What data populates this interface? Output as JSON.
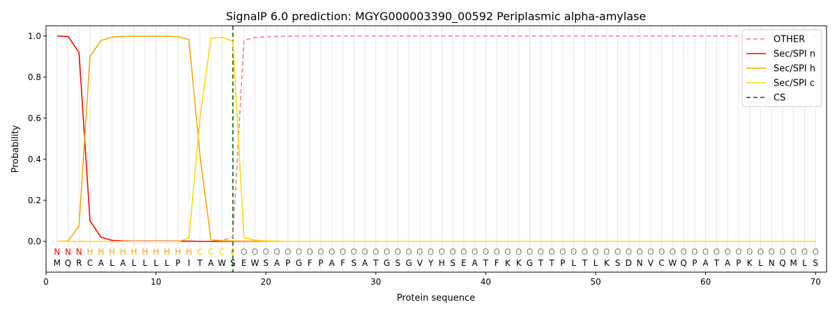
{
  "chart_data": {
    "type": "line",
    "title": "SignalP 6.0 prediction: MGYG000003390_00592 Periplasmic alpha-amylase",
    "xlabel": "Protein sequence",
    "ylabel": "Probability",
    "xlim": [
      0,
      71
    ],
    "ylim": [
      -0.15,
      1.05
    ],
    "xticks": [
      0,
      10,
      20,
      30,
      40,
      50,
      60,
      70
    ],
    "yticks": [
      0.0,
      0.2,
      0.4,
      0.6,
      0.8,
      1.0
    ],
    "xtick_labels": [
      "0",
      "10",
      "20",
      "30",
      "40",
      "50",
      "60",
      "70"
    ],
    "ytick_labels": [
      "0.0",
      "0.2",
      "0.4",
      "0.6",
      "0.8",
      "1.0"
    ],
    "grid": "vertical lines at each residue position",
    "legend_position": "top-right",
    "sequence": [
      "M",
      "Q",
      "R",
      "C",
      "A",
      "L",
      "A",
      "L",
      "L",
      "L",
      "L",
      "P",
      "I",
      "T",
      "A",
      "W",
      "S",
      "E",
      "W",
      "S",
      "A",
      "P",
      "G",
      "F",
      "P",
      "A",
      "F",
      "S",
      "A",
      "T",
      "G",
      "S",
      "G",
      "V",
      "Y",
      "H",
      "S",
      "E",
      "A",
      "T",
      "F",
      "K",
      "K",
      "G",
      "T",
      "T",
      "P",
      "L",
      "T",
      "L",
      "K",
      "S",
      "D",
      "N",
      "V",
      "C",
      "W",
      "Q",
      "P",
      "A",
      "T",
      "A",
      "P",
      "K",
      "L",
      "N",
      "Q",
      "M",
      "L",
      "S"
    ],
    "labels": [
      "N",
      "N",
      "N",
      "H",
      "H",
      "H",
      "H",
      "H",
      "H",
      "H",
      "H",
      "H",
      "H",
      "C",
      "C",
      "C",
      "C",
      "O",
      "O",
      "O",
      "O",
      "O",
      "O",
      "O",
      "O",
      "O",
      "O",
      "O",
      "O",
      "O",
      "O",
      "O",
      "O",
      "O",
      "O",
      "O",
      "O",
      "O",
      "O",
      "O",
      "O",
      "O",
      "O",
      "O",
      "O",
      "O",
      "O",
      "O",
      "O",
      "O",
      "O",
      "O",
      "O",
      "O",
      "O",
      "O",
      "O",
      "O",
      "O",
      "O",
      "O",
      "O",
      "O",
      "O",
      "O",
      "O",
      "O",
      "O",
      "O",
      "O"
    ],
    "label_colors": {
      "N": "#ff0000",
      "H": "#ffa500",
      "C": "#ffd700",
      "O": "#808080"
    },
    "cleavage_site": 17,
    "series": [
      {
        "name": "OTHER",
        "color": "#f08080",
        "dash": true,
        "values": [
          0.0,
          0.0,
          0.0,
          0.0,
          0.0,
          0.0,
          0.0,
          0.0,
          0.0,
          0.0,
          0.0,
          0.0,
          0.0,
          0.0,
          0.0,
          0.005,
          0.02,
          0.98,
          0.993,
          0.996,
          0.998,
          0.999,
          1.0,
          1.0,
          1.0,
          1.0,
          1.0,
          1.0,
          1.0,
          1.0,
          1.0,
          1.0,
          1.0,
          1.0,
          1.0,
          1.0,
          1.0,
          1.0,
          1.0,
          1.0,
          1.0,
          1.0,
          1.0,
          1.0,
          1.0,
          1.0,
          1.0,
          1.0,
          1.0,
          1.0,
          1.0,
          1.0,
          1.0,
          1.0,
          1.0,
          1.0,
          1.0,
          1.0,
          1.0,
          1.0,
          1.0,
          1.0,
          1.0,
          1.0,
          1.0,
          1.0,
          1.0,
          1.0,
          1.0,
          1.0
        ]
      },
      {
        "name": "Sec/SPI n",
        "color": "#ff0000",
        "dash": false,
        "values": [
          1.0,
          0.998,
          0.92,
          0.1,
          0.02,
          0.005,
          0.002,
          0.001,
          0.001,
          0.001,
          0.001,
          0.001,
          0.001,
          0.0,
          0.0,
          0.0,
          0.0,
          0.0,
          0.0,
          0.0,
          0.0,
          0.0,
          0.0,
          0.0,
          0.0,
          0.0,
          0.0,
          0.0,
          0.0,
          0.0,
          0.0,
          0.0,
          0.0,
          0.0,
          0.0,
          0.0,
          0.0,
          0.0,
          0.0,
          0.0,
          0.0,
          0.0,
          0.0,
          0.0,
          0.0,
          0.0,
          0.0,
          0.0,
          0.0,
          0.0,
          0.0,
          0.0,
          0.0,
          0.0,
          0.0,
          0.0,
          0.0,
          0.0,
          0.0,
          0.0,
          0.0,
          0.0,
          0.0,
          0.0,
          0.0,
          0.0,
          0.0,
          0.0,
          0.0,
          0.0
        ]
      },
      {
        "name": "Sec/SPI h",
        "color": "#ffa500",
        "dash": false,
        "values": [
          0.0,
          0.002,
          0.075,
          0.9,
          0.978,
          0.995,
          0.998,
          0.999,
          0.999,
          0.999,
          0.999,
          0.997,
          0.982,
          0.42,
          0.008,
          0.003,
          0.002,
          0.001,
          0.001,
          0.0,
          0.0,
          0.0,
          0.0,
          0.0,
          0.0,
          0.0,
          0.0,
          0.0,
          0.0,
          0.0,
          0.0,
          0.0,
          0.0,
          0.0,
          0.0,
          0.0,
          0.0,
          0.0,
          0.0,
          0.0,
          0.0,
          0.0,
          0.0,
          0.0,
          0.0,
          0.0,
          0.0,
          0.0,
          0.0,
          0.0,
          0.0,
          0.0,
          0.0,
          0.0,
          0.0,
          0.0,
          0.0,
          0.0,
          0.0,
          0.0,
          0.0,
          0.0,
          0.0,
          0.0,
          0.0,
          0.0,
          0.0,
          0.0,
          0.0,
          0.0
        ]
      },
      {
        "name": "Sec/SPI c",
        "color": "#ffd700",
        "dash": false,
        "values": [
          0.0,
          0.0,
          0.0,
          0.0,
          0.0,
          0.0,
          0.0,
          0.0,
          0.0,
          0.0,
          0.0,
          0.0,
          0.015,
          0.6,
          0.99,
          0.993,
          0.975,
          0.018,
          0.006,
          0.002,
          0.001,
          0.0,
          0.0,
          0.0,
          0.0,
          0.0,
          0.0,
          0.0,
          0.0,
          0.0,
          0.0,
          0.0,
          0.0,
          0.0,
          0.0,
          0.0,
          0.0,
          0.0,
          0.0,
          0.0,
          0.0,
          0.0,
          0.0,
          0.0,
          0.0,
          0.0,
          0.0,
          0.0,
          0.0,
          0.0,
          0.0,
          0.0,
          0.0,
          0.0,
          0.0,
          0.0,
          0.0,
          0.0,
          0.0,
          0.0,
          0.0,
          0.0,
          0.0,
          0.0,
          0.0,
          0.0,
          0.0,
          0.0,
          0.0,
          0.0
        ]
      }
    ],
    "legend": [
      {
        "name": "OTHER",
        "color": "#f08080",
        "dash": true
      },
      {
        "name": "Sec/SPI n",
        "color": "#ff0000",
        "dash": false
      },
      {
        "name": "Sec/SPI h",
        "color": "#ffa500",
        "dash": false
      },
      {
        "name": "Sec/SPI c",
        "color": "#ffd700",
        "dash": false
      },
      {
        "name": "CS",
        "color": "#006400",
        "dash": true
      }
    ]
  }
}
